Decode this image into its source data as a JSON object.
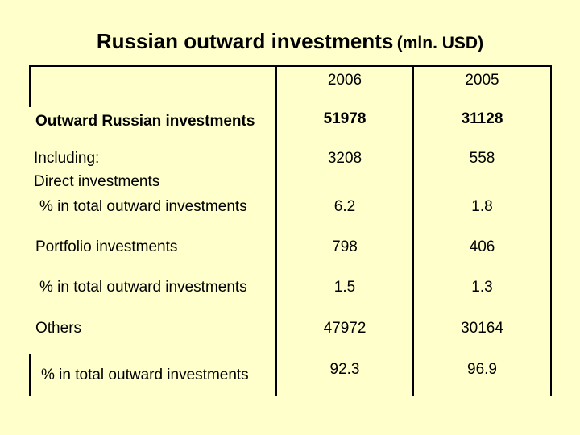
{
  "title": {
    "main": "Russian outward investments",
    "unit": "(mln. USD)"
  },
  "columns": [
    "2006",
    "2005"
  ],
  "rows": [
    {
      "label": "Outward Russian investments",
      "v2006": "51978",
      "v2005": "31128"
    },
    {
      "label": "Including:",
      "label2": "Direct investments",
      "v2006": "3208",
      "v2005": "558"
    },
    {
      "label": "% in total outward investments",
      "v2006": "6.2",
      "v2005": "1.8"
    },
    {
      "label": "Portfolio investments",
      "v2006": "798",
      "v2005": "406"
    },
    {
      "label": "% in total outward investments",
      "v2006": "1.5",
      "v2005": "1.3"
    },
    {
      "label": "Others",
      "v2006": "47972",
      "v2005": "30164"
    },
    {
      "label": "% in total outward investments",
      "v2006": "92.3",
      "v2005": "96.9"
    }
  ]
}
